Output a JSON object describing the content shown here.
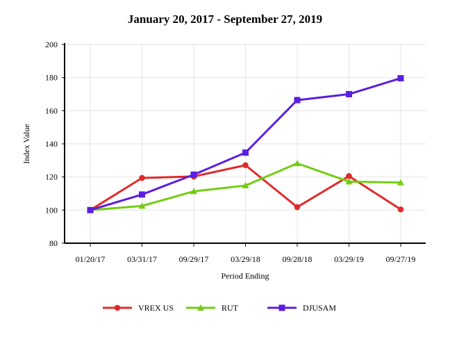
{
  "chart_data": {
    "type": "line",
    "title": "January 20, 2017 - September 27, 2019",
    "xlabel": "Period Ending",
    "ylabel": "Index Value",
    "categories": [
      "01/20/17",
      "03/31/17",
      "09/29/17",
      "03/29/18",
      "09/28/18",
      "03/29/19",
      "09/27/19"
    ],
    "ylim": [
      80,
      200
    ],
    "yticks": [
      80,
      100,
      120,
      140,
      160,
      180,
      200
    ],
    "grid": true,
    "legend": "bottom",
    "series": [
      {
        "name": "VREX US",
        "color": "#e02a2a",
        "marker": "circle",
        "values": [
          100,
          119.4,
          120.3,
          127.1,
          101.8,
          120.5,
          100.4
        ]
      },
      {
        "name": "RUT",
        "color": "#74cc12",
        "marker": "triangle",
        "values": [
          100,
          102.5,
          111.3,
          114.8,
          128.2,
          117.2,
          116.6
        ]
      },
      {
        "name": "DJUSAM",
        "color": "#5b1ee0",
        "marker": "square",
        "values": [
          100,
          109.4,
          121.4,
          134.7,
          166.4,
          170.0,
          179.6
        ]
      }
    ]
  }
}
